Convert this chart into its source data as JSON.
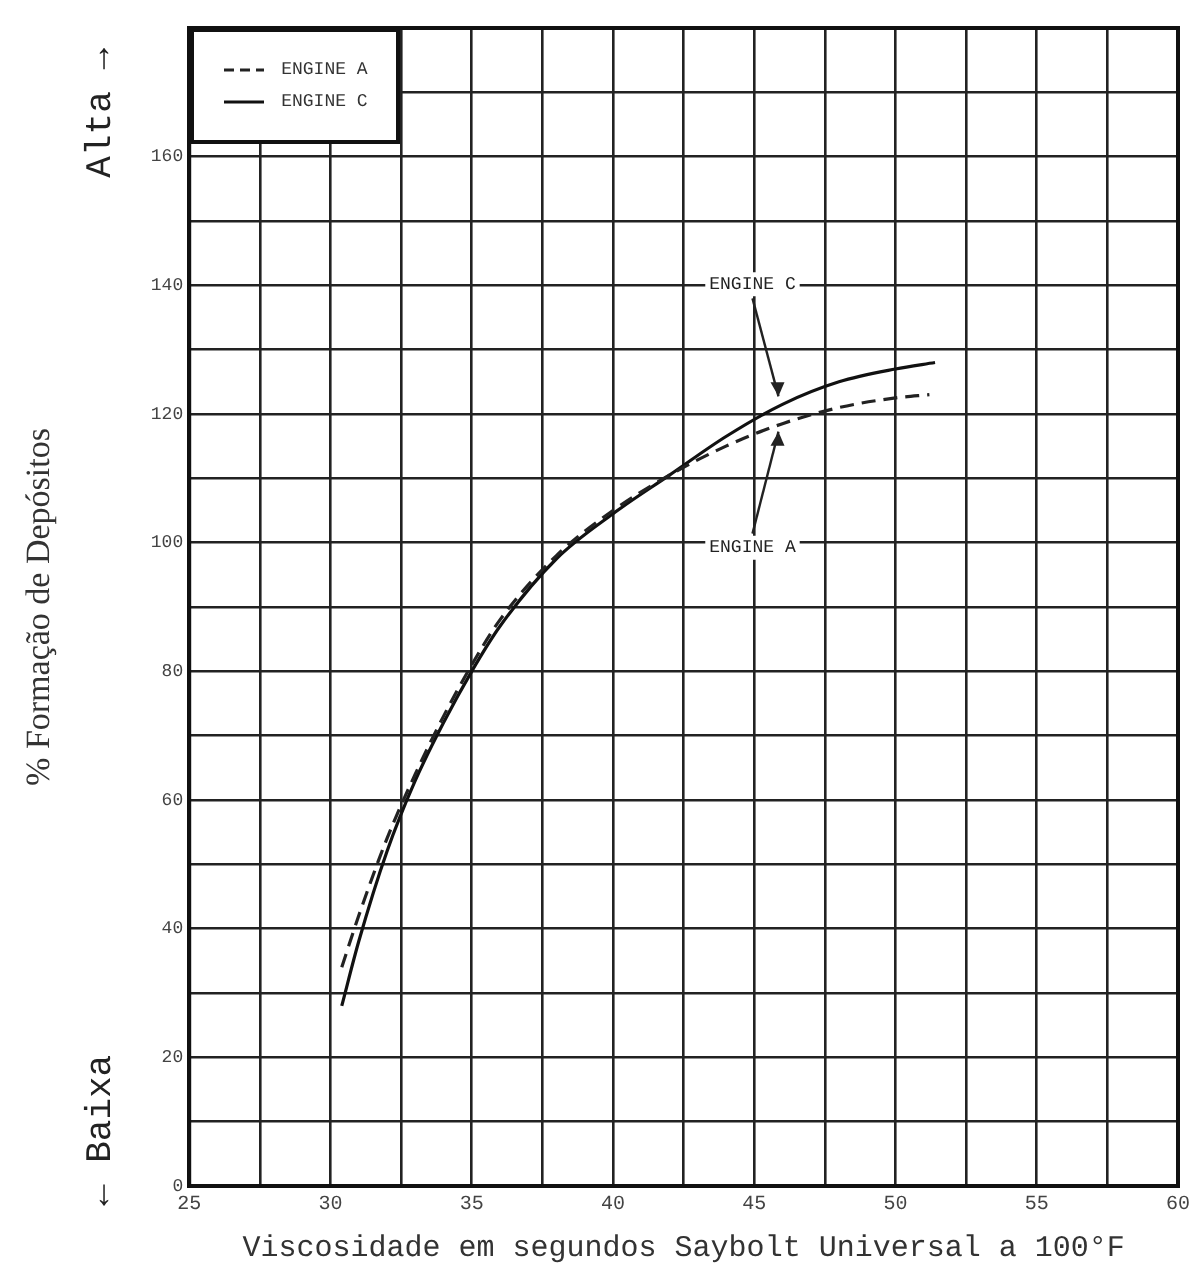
{
  "chart_data": {
    "type": "line",
    "xlabel": "Viscosidade em segundos Saybolt Universal a 100°F",
    "ylabel": "% Formação de Depósitos",
    "annotations": [
      "Alta →",
      "← Baixa",
      {
        "text": "ENGINE C",
        "x": 46,
        "y": 121.5
      },
      {
        "text": "ENGINE A",
        "x": 46,
        "y": 118.5
      }
    ],
    "series": [
      {
        "name": "ENGINE A",
        "color": "#222222",
        "line_style": "dashed",
        "x": [
          30.4,
          31,
          32,
          33,
          34,
          35,
          36,
          38,
          40,
          42,
          44,
          46,
          48,
          50,
          51.2
        ],
        "values": [
          34,
          42,
          54,
          64,
          73,
          81,
          88,
          98,
          105,
          110.5,
          115,
          118.5,
          121,
          122.5,
          123
        ]
      },
      {
        "name": "ENGINE C",
        "color": "#111111",
        "line_style": "solid",
        "x": [
          30.4,
          31,
          32,
          33,
          34,
          35,
          36,
          38,
          40,
          42,
          44,
          46,
          48,
          50,
          51.4
        ],
        "values": [
          28,
          38,
          52,
          63,
          72,
          80,
          87,
          97.5,
          104.5,
          110.5,
          116.5,
          121.5,
          125,
          127,
          128
        ]
      }
    ],
    "xlim": [
      25,
      60
    ],
    "xticks": [
      25,
      {
        "value": 27.5,
        "label": null
      },
      30,
      {
        "value": 32.5,
        "label": null
      },
      35,
      {
        "value": 37.5,
        "label": null
      },
      40,
      {
        "value": 42.5,
        "label": null
      },
      45,
      {
        "value": 47.5,
        "label": null
      },
      50,
      {
        "value": 52.5,
        "label": null
      },
      55,
      {
        "value": 57.5,
        "label": null
      },
      60
    ],
    "ylim": [
      0,
      180
    ],
    "yticks": [
      0,
      {
        "value": 10,
        "label": null
      },
      20,
      {
        "value": 30,
        "label": null
      },
      40,
      {
        "value": 50,
        "label": null
      },
      60,
      {
        "value": 70,
        "label": null
      },
      80,
      {
        "value": 90,
        "label": null
      },
      100,
      {
        "value": 110,
        "label": null
      },
      120,
      {
        "value": 130,
        "label": null
      },
      140,
      {
        "value": 150,
        "label": null
      },
      160,
      {
        "value": 170,
        "label": null
      }
    ],
    "grid": true,
    "legend": "top left",
    "marker": "none"
  }
}
